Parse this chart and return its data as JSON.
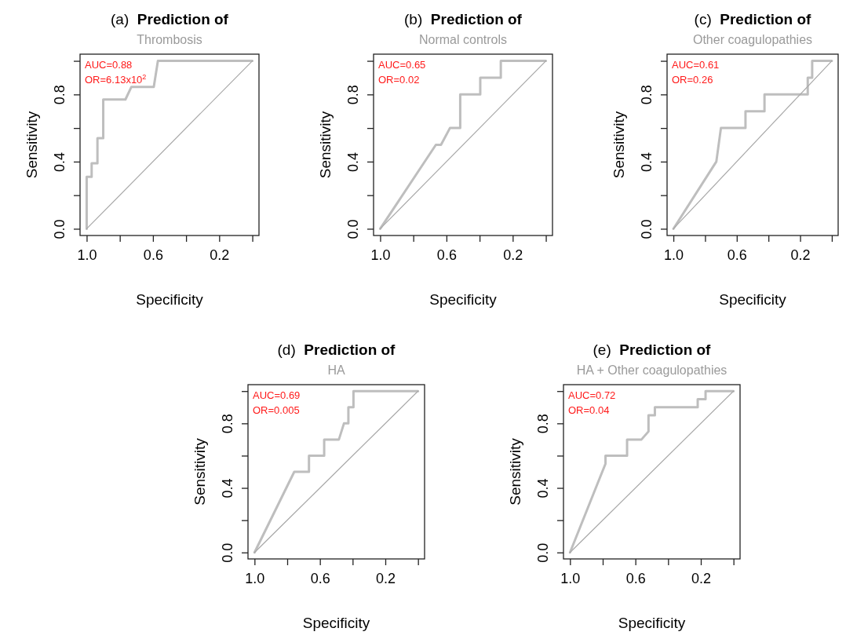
{
  "chart_data": [
    {
      "type": "line",
      "title": "(a) Prediction of",
      "subtitle": "Thrombosis",
      "xlabel": "Specificity",
      "ylabel": "Sensitivity",
      "annotations": [
        "AUC=0.88",
        "OR=6.13x10$^{2}$"
      ],
      "xlim": [
        1.04,
        -0.04
      ],
      "ylim": [
        -0.04,
        1.04
      ],
      "xticks": [
        {
          "value": 1,
          "label": "1.0"
        },
        {
          "value": 0.8,
          "label": null
        },
        {
          "value": 0.6,
          "label": "0.6"
        },
        {
          "value": 0.4,
          "label": null
        },
        {
          "value": 0.2,
          "label": "0.2"
        },
        {
          "value": 0,
          "label": null
        }
      ],
      "yticks": [
        {
          "value": 0,
          "label": "0.0"
        },
        {
          "value": 0.2,
          "label": null
        },
        {
          "value": 0.4,
          "label": "0.4"
        },
        {
          "value": 0.6,
          "label": null
        },
        {
          "value": 0.8,
          "label": "0.8"
        },
        {
          "value": 1,
          "label": null
        }
      ],
      "series": [
        {
          "color": "#bebebe",
          "x": [
            1,
            1,
            0.97,
            0.97,
            0.935,
            0.935,
            0.9,
            0.9,
            0.766,
            0.73,
            0.595,
            0.57,
            0
          ],
          "values": [
            0,
            0.31,
            0.31,
            0.39,
            0.39,
            0.54,
            0.54,
            0.77,
            0.77,
            0.845,
            0.845,
            1,
            1
          ]
        },
        {
          "color": "#a8a8a8",
          "x": [
            1,
            0
          ],
          "values": [
            0,
            1
          ]
        }
      ]
    },
    {
      "type": "line",
      "title": "(b) Prediction of",
      "subtitle": "Normal controls",
      "xlabel": "Specificity",
      "ylabel": "Sensitivity",
      "annotations": [
        "AUC=0.65",
        "OR=0.02"
      ],
      "xlim": [
        1.04,
        -0.04
      ],
      "ylim": [
        -0.04,
        1.04
      ],
      "xticks": [
        {
          "value": 1,
          "label": "1.0"
        },
        {
          "value": 0.8,
          "label": null
        },
        {
          "value": 0.6,
          "label": "0.6"
        },
        {
          "value": 0.4,
          "label": null
        },
        {
          "value": 0.2,
          "label": "0.2"
        },
        {
          "value": 0,
          "label": null
        }
      ],
      "yticks": [
        {
          "value": 0,
          "label": "0.0"
        },
        {
          "value": 0.2,
          "label": null
        },
        {
          "value": 0.4,
          "label": "0.4"
        },
        {
          "value": 0.6,
          "label": null
        },
        {
          "value": 0.8,
          "label": "0.8"
        },
        {
          "value": 1,
          "label": null
        }
      ],
      "series": [
        {
          "color": "#bebebe",
          "x": [
            1,
            0.664,
            0.633,
            0.579,
            0.517,
            0.517,
            0.396,
            0.396,
            0.272,
            0.272,
            0
          ],
          "values": [
            0,
            0.5,
            0.5,
            0.6,
            0.6,
            0.8,
            0.8,
            0.9,
            0.9,
            1,
            1
          ]
        },
        {
          "color": "#a8a8a8",
          "x": [
            1,
            0
          ],
          "values": [
            0,
            1
          ]
        }
      ]
    },
    {
      "type": "line",
      "title": "(c) Prediction of",
      "subtitle": "Other coagulopathies",
      "xlabel": "Specificity",
      "ylabel": "Sensitivity",
      "annotations": [
        "AUC=0.61",
        "OR=0.26"
      ],
      "xlim": [
        1.04,
        -0.04
      ],
      "ylim": [
        -0.04,
        1.04
      ],
      "xticks": [
        {
          "value": 1,
          "label": "1.0"
        },
        {
          "value": 0.8,
          "label": null
        },
        {
          "value": 0.6,
          "label": "0.6"
        },
        {
          "value": 0.4,
          "label": null
        },
        {
          "value": 0.2,
          "label": "0.2"
        },
        {
          "value": 0,
          "label": null
        }
      ],
      "yticks": [
        {
          "value": 0,
          "label": "0.0"
        },
        {
          "value": 0.2,
          "label": null
        },
        {
          "value": 0.4,
          "label": "0.4"
        },
        {
          "value": 0.6,
          "label": null
        },
        {
          "value": 0.8,
          "label": "0.8"
        },
        {
          "value": 1,
          "label": null
        }
      ],
      "series": [
        {
          "color": "#bebebe",
          "x": [
            1,
            0.729,
            0.7,
            0.545,
            0.545,
            0.425,
            0.425,
            0.152,
            0.152,
            0.124,
            0.124,
            0
          ],
          "values": [
            0,
            0.4,
            0.6,
            0.6,
            0.7,
            0.7,
            0.8,
            0.8,
            0.9,
            0.9,
            1,
            1
          ]
        },
        {
          "color": "#a8a8a8",
          "x": [
            1,
            0
          ],
          "values": [
            0,
            1
          ]
        }
      ]
    },
    {
      "type": "line",
      "title": "(d) Prediction of",
      "subtitle": "HA",
      "xlabel": "Specificity",
      "ylabel": "Sensitivity",
      "annotations": [
        "AUC=0.69",
        "OR=0.005"
      ],
      "xlim": [
        1.04,
        -0.04
      ],
      "ylim": [
        -0.04,
        1.04
      ],
      "xticks": [
        {
          "value": 1,
          "label": "1.0"
        },
        {
          "value": 0.8,
          "label": null
        },
        {
          "value": 0.6,
          "label": "0.6"
        },
        {
          "value": 0.4,
          "label": null
        },
        {
          "value": 0.2,
          "label": "0.2"
        },
        {
          "value": 0,
          "label": null
        }
      ],
      "yticks": [
        {
          "value": 0,
          "label": "0.0"
        },
        {
          "value": 0.2,
          "label": null
        },
        {
          "value": 0.4,
          "label": "0.4"
        },
        {
          "value": 0.6,
          "label": null
        },
        {
          "value": 0.8,
          "label": "0.8"
        },
        {
          "value": 1,
          "label": null
        }
      ],
      "series": [
        {
          "color": "#bebebe",
          "x": [
            1,
            0.757,
            0.667,
            0.667,
            0.574,
            0.574,
            0.484,
            0.453,
            0.426,
            0.426,
            0.395,
            0.395,
            0
          ],
          "values": [
            0,
            0.5,
            0.5,
            0.6,
            0.6,
            0.7,
            0.7,
            0.8,
            0.8,
            0.9,
            0.9,
            1,
            1
          ]
        },
        {
          "color": "#a8a8a8",
          "x": [
            1,
            0
          ],
          "values": [
            0,
            1
          ]
        }
      ]
    },
    {
      "type": "line",
      "title": "(e) Prediction of",
      "subtitle": "HA + Other coagulopathies",
      "xlabel": "Specificity",
      "ylabel": "Sensitivity",
      "annotations": [
        "AUC=0.72",
        "OR=0.04"
      ],
      "xlim": [
        1.04,
        -0.04
      ],
      "ylim": [
        -0.04,
        1.04
      ],
      "xticks": [
        {
          "value": 1,
          "label": "1.0"
        },
        {
          "value": 0.8,
          "label": null
        },
        {
          "value": 0.6,
          "label": "0.6"
        },
        {
          "value": 0.4,
          "label": null
        },
        {
          "value": 0.2,
          "label": "0.2"
        },
        {
          "value": 0,
          "label": null
        }
      ],
      "yticks": [
        {
          "value": 0,
          "label": "0.0"
        },
        {
          "value": 0.2,
          "label": null
        },
        {
          "value": 0.4,
          "label": "0.4"
        },
        {
          "value": 0.6,
          "label": null
        },
        {
          "value": 0.8,
          "label": "0.8"
        },
        {
          "value": 1,
          "label": null
        }
      ],
      "series": [
        {
          "color": "#bebebe",
          "x": [
            1,
            0.783,
            0.783,
            0.651,
            0.651,
            0.563,
            0.52,
            0.52,
            0.481,
            0.481,
            0.219,
            0.219,
            0.171,
            0.171,
            0
          ],
          "values": [
            0,
            0.55,
            0.6,
            0.6,
            0.7,
            0.7,
            0.75,
            0.85,
            0.85,
            0.9,
            0.9,
            0.95,
            0.95,
            1,
            1
          ]
        },
        {
          "color": "#a8a8a8",
          "x": [
            1,
            0
          ],
          "values": [
            0,
            1
          ]
        }
      ]
    }
  ]
}
